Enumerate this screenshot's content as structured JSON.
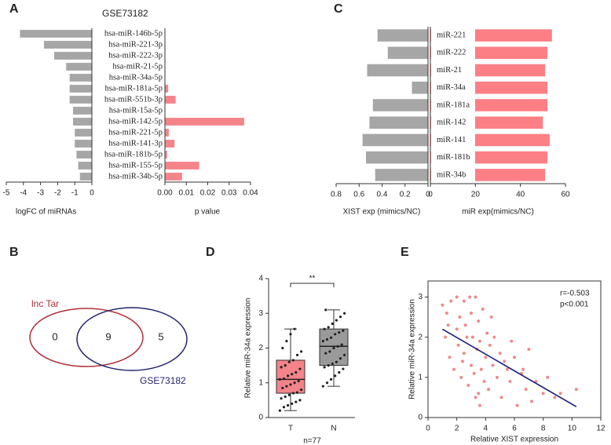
{
  "chart_data": [
    {
      "type": "butterfly",
      "panel": "A",
      "title": "GSE73182",
      "categories": [
        "hsa-miR-146b-5p",
        "hsa-miR-221-3p",
        "hsa-miR-222-3p",
        "hsa-miR-21-5p",
        "hsa-miR-34a-5p",
        "hsa-miR-181a-5p",
        "hsa-miR-551b-3p",
        "hsa-miR-15a-5p",
        "hsa-miR-142-5p",
        "hsa-miR-221-5p",
        "hsa-miR-141-3p",
        "hsa-miR-181b-5p",
        "hsa-miR-155-5p",
        "hsa-miR-34b-5p"
      ],
      "left": {
        "xlabel": "logFC of miRNAs",
        "color": "#a6a6a6",
        "xlim": [
          -5,
          0
        ],
        "xticks": [
          -5,
          -4,
          -3,
          -2,
          -1,
          0
        ],
        "values": [
          -4.2,
          -2.8,
          -2.2,
          -1.5,
          -1.3,
          -1.3,
          -1.3,
          -1.1,
          -1.1,
          -1.0,
          -1.0,
          -0.9,
          -0.8,
          -0.7
        ]
      },
      "right": {
        "xlabel": "p value",
        "color": "#f4838a",
        "xlim": [
          0,
          0.04
        ],
        "xticks": [
          {
            "value": 0,
            "label": "0.00"
          },
          0.01,
          0.02,
          0.03,
          0.04
        ],
        "values": [
          0,
          0,
          0,
          0,
          0,
          0.0015,
          0.005,
          0,
          0.037,
          0.0018,
          0.0045,
          0.001,
          0.016,
          0.008
        ]
      }
    },
    {
      "type": "venn",
      "panel": "B",
      "sets": [
        {
          "name": "lnc Tar",
          "color": "#b0303a"
        },
        {
          "name": "GSE73182",
          "color": "#25256e"
        }
      ],
      "counts": [
        0,
        9,
        5
      ]
    },
    {
      "type": "butterfly",
      "panel": "C",
      "categories": [
        "miR-221",
        "miR-222",
        "miR-21",
        "miR-34a",
        "miR-181a",
        "miR-142",
        "miR-141",
        "miR-181b",
        "miR-34b"
      ],
      "left": {
        "xlabel": "XIST exp (mimics/NC)",
        "color": "#a6a6a6",
        "xlim": [
          0.8,
          0
        ],
        "xticks": [
          0.8,
          0.6,
          0.4,
          0.2,
          0
        ],
        "values": [
          0.44,
          0.35,
          0.53,
          0.14,
          0.48,
          0.51,
          0.57,
          0.54,
          0.46
        ]
      },
      "right": {
        "xlabel": "miR exp(mimics/NC)",
        "color": "#fc7f86",
        "xlim": [
          0,
          60
        ],
        "xticks": [
          0,
          20,
          40,
          60
        ],
        "values": [
          54,
          52,
          51,
          52,
          52,
          50,
          53,
          52,
          51
        ]
      }
    },
    {
      "type": "box",
      "panel": "D",
      "ylabel": "Relative miR-34a expression",
      "xlabel": "n=77",
      "annotation": "**",
      "ylim": [
        0,
        4
      ],
      "yticks": [
        0,
        1,
        2,
        3,
        4
      ],
      "categories": [
        "T",
        "N"
      ],
      "boxes": [
        {
          "color": "#f4838a",
          "min": 0.2,
          "q1": 0.7,
          "median": 1.1,
          "q3": 1.65,
          "max": 2.55,
          "points": [
            0.2,
            0.3,
            0.35,
            0.4,
            0.45,
            0.5,
            0.55,
            0.6,
            0.65,
            0.7,
            0.72,
            0.8,
            0.85,
            0.9,
            0.95,
            1.0,
            1.05,
            1.1,
            1.12,
            1.2,
            1.25,
            1.3,
            1.4,
            1.45,
            1.5,
            1.6,
            1.65,
            1.8,
            1.9,
            2.0,
            2.2,
            2.4,
            2.55
          ]
        },
        {
          "color": "#9a9a9a",
          "min": 0.9,
          "q1": 1.5,
          "median": 2.05,
          "q3": 2.55,
          "max": 3.1,
          "points": [
            0.9,
            1.0,
            1.1,
            1.2,
            1.3,
            1.4,
            1.45,
            1.5,
            1.55,
            1.6,
            1.7,
            1.8,
            1.85,
            1.9,
            2.0,
            2.05,
            2.1,
            2.2,
            2.25,
            2.3,
            2.4,
            2.45,
            2.5,
            2.55,
            2.6,
            2.7,
            2.8,
            2.9,
            3.0,
            3.1
          ]
        }
      ]
    },
    {
      "type": "scatter",
      "panel": "E",
      "xlabel": "Relative XIST expression",
      "ylabel": "Relative miR-34a expression",
      "annotations": [
        "r=-0.503",
        "p<0.001"
      ],
      "color": "#f08a8a",
      "xlim": [
        0,
        12
      ],
      "xticks": [
        0,
        2,
        4,
        6,
        8,
        10,
        12
      ],
      "ylim": [
        0,
        3.4
      ],
      "yticks": [
        0,
        1,
        2,
        3
      ],
      "x": [
        1,
        1.2,
        1.3,
        1.5,
        1.6,
        1.8,
        2,
        2,
        2.1,
        2.2,
        2.3,
        2.5,
        2.5,
        2.6,
        2.8,
        2.9,
        3,
        3,
        3.1,
        3.2,
        3.3,
        3.4,
        3.5,
        3.5,
        3.6,
        3.7,
        3.8,
        3.9,
        4,
        4.1,
        4.2,
        4.3,
        4.5,
        4.6,
        4.8,
        5,
        5.1,
        5.3,
        5.5,
        5.7,
        6,
        6.2,
        6.5,
        6.8,
        7,
        7.2,
        7.5,
        8,
        8.3,
        8.8,
        9.2,
        10.3,
        1.4,
        2.4,
        3.3,
        4.4,
        2.7,
        3.6,
        5.8,
        6.6
      ],
      "y": [
        2.8,
        2.0,
        2.6,
        1.5,
        2.9,
        1.2,
        3.0,
        2.2,
        1.8,
        2.5,
        1.0,
        2.9,
        1.6,
        2.3,
        0.8,
        3.0,
        2.6,
        1.3,
        2.0,
        1.1,
        3.0,
        1.7,
        2.4,
        0.6,
        1.9,
        1.2,
        2.7,
        0.9,
        1.5,
        2.1,
        0.7,
        1.8,
        1.3,
        2.0,
        1.0,
        1.6,
        0.5,
        1.4,
        1.2,
        0.9,
        1.5,
        0.3,
        1.1,
        0.7,
        1.7,
        0.4,
        0.9,
        0.6,
        1.0,
        0.5,
        0.6,
        0.7,
        2.3,
        1.4,
        0.5,
        2.5,
        2.0,
        0.3,
        1.9,
        1.2
      ],
      "fit": {
        "color": "#1a1a7a",
        "x": [
          1,
          10.3
        ],
        "y": [
          2.2,
          0.27
        ]
      }
    }
  ]
}
